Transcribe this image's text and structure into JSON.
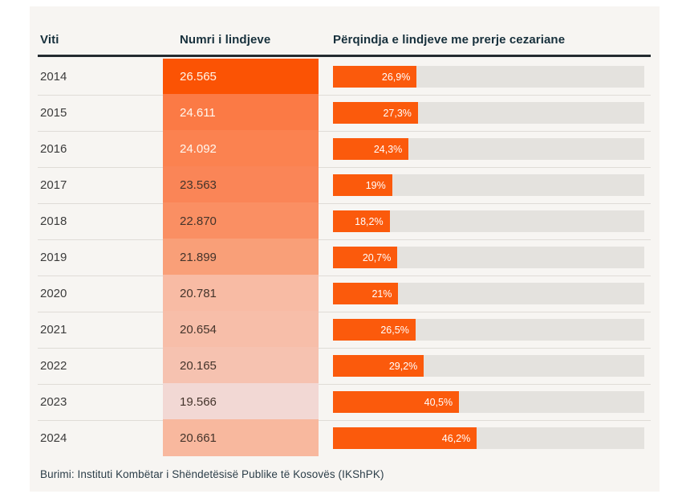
{
  "table": {
    "columns": [
      {
        "label": "Viti"
      },
      {
        "label": "Numri i lindjeve"
      },
      {
        "label": "Përqindja e lindjeve me prerje cezariane"
      }
    ],
    "rows": [
      {
        "year": "2014",
        "births": "26.565",
        "pct": 26.9,
        "pct_label": "26,9%",
        "cell_color": "#fb5304",
        "births_text_color": "#fff6ea"
      },
      {
        "year": "2015",
        "births": "24.611",
        "pct": 27.3,
        "pct_label": "27,3%",
        "cell_color": "#fb7a45",
        "births_text_color": "#fff8f0"
      },
      {
        "year": "2016",
        "births": "24.092",
        "pct": 24.3,
        "pct_label": "24,3%",
        "cell_color": "#fb8250",
        "births_text_color": "#fff8f0"
      },
      {
        "year": "2017",
        "births": "23.563",
        "pct": 19.0,
        "pct_label": "19%",
        "cell_color": "#fa8557",
        "births_text_color": "#44342b"
      },
      {
        "year": "2018",
        "births": "22.870",
        "pct": 18.2,
        "pct_label": "18,2%",
        "cell_color": "#fa8f63",
        "births_text_color": "#44342b"
      },
      {
        "year": "2019",
        "births": "21.899",
        "pct": 20.7,
        "pct_label": "20,7%",
        "cell_color": "#f99f78",
        "births_text_color": "#44342b"
      },
      {
        "year": "2020",
        "births": "20.781",
        "pct": 21.0,
        "pct_label": "21%",
        "cell_color": "#f8bba4",
        "births_text_color": "#44342b"
      },
      {
        "year": "2021",
        "births": "20.654",
        "pct": 26.5,
        "pct_label": "26,5%",
        "cell_color": "#f7bea9",
        "births_text_color": "#44342b"
      },
      {
        "year": "2022",
        "births": "20.165",
        "pct": 29.2,
        "pct_label": "29,2%",
        "cell_color": "#f6c2b0",
        "births_text_color": "#44342b"
      },
      {
        "year": "2023",
        "births": "19.566",
        "pct": 40.5,
        "pct_label": "40,5%",
        "cell_color": "#f2d8d4",
        "births_text_color": "#44342b"
      },
      {
        "year": "2024",
        "births": "20.661",
        "pct": 46.2,
        "pct_label": "46,2%",
        "cell_color": "#f8b89e",
        "births_text_color": "#44342b"
      }
    ]
  },
  "footer": {
    "source": "Burimi: Instituti Kombëtar i Shëndetësisë Publike të Kosovës (IKShPK)"
  },
  "colors": {
    "bar": "#fb5a0c",
    "track": "#e4e2de",
    "panel_bg": "#f7f5f2",
    "header_text": "#17303c",
    "header_rule": "#242b30",
    "divider": "#dfdcd7",
    "footer_text": "#2c3e49"
  },
  "chart_data": {
    "type": "table",
    "title": "",
    "categories": [
      "2014",
      "2015",
      "2016",
      "2017",
      "2018",
      "2019",
      "2020",
      "2021",
      "2022",
      "2023",
      "2024"
    ],
    "series": [
      {
        "name": "Numri i lindjeve",
        "values": [
          26565,
          24611,
          24092,
          23563,
          22870,
          21899,
          20781,
          20654,
          20165,
          19566,
          20661
        ]
      },
      {
        "name": "Përqindja e lindjeve me prerje cezariane (%)",
        "values": [
          26.9,
          27.3,
          24.3,
          19.0,
          18.2,
          20.7,
          21.0,
          26.5,
          29.2,
          40.5,
          46.2
        ]
      }
    ],
    "xlabel": "Viti",
    "ylabel": "",
    "bar_axis_range": [
      0,
      100
    ],
    "legend_position": "none",
    "grid": false,
    "notes": "Bar column renders percentage on 0–100% scale; births column shaded orange proportional to value"
  }
}
